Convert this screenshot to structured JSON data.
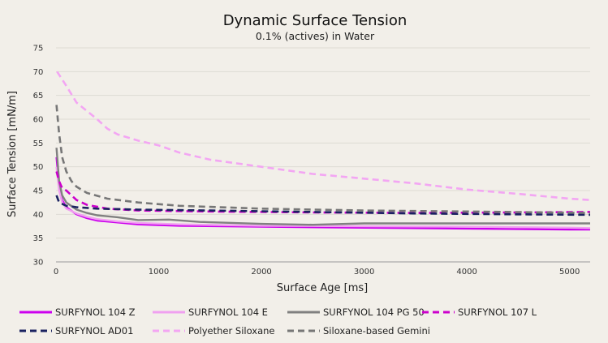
{
  "chart_data": {
    "type": "line",
    "title": "Dynamic Surface Tension",
    "subtitle": "0.1% (actives) in Water",
    "xlabel": "Surface Age [ms]",
    "ylabel": "Surface Tension [mN/m]",
    "xlim": [
      0,
      5200
    ],
    "ylim": [
      30,
      75
    ],
    "x_ticks": [
      0,
      1000,
      2000,
      3000,
      4000,
      5000
    ],
    "y_ticks": [
      30,
      35,
      40,
      45,
      50,
      55,
      60,
      65,
      70,
      75
    ],
    "legend_position": "bottom",
    "series": [
      {
        "name": "SURFYNOL 104 Z",
        "color": "#cc00ee",
        "dash": "solid",
        "points": [
          [
            5,
            52
          ],
          [
            30,
            46
          ],
          [
            60,
            43
          ],
          [
            100,
            41.5
          ],
          [
            200,
            40
          ],
          [
            300,
            39.2
          ],
          [
            400,
            38.7
          ],
          [
            600,
            38.3
          ],
          [
            800,
            37.9
          ],
          [
            1200,
            37.6
          ],
          [
            2000,
            37.4
          ],
          [
            3000,
            37.2
          ],
          [
            4000,
            37
          ],
          [
            5000,
            36.8
          ],
          [
            5200,
            36.8
          ]
        ]
      },
      {
        "name": "SURFYNOL 104 E",
        "color": "#f0a0f0",
        "dash": "solid",
        "points": [
          [
            5,
            50
          ],
          [
            30,
            45
          ],
          [
            60,
            42.5
          ],
          [
            100,
            41.2
          ],
          [
            200,
            40.2
          ],
          [
            300,
            39.5
          ],
          [
            400,
            39
          ],
          [
            600,
            38.5
          ],
          [
            800,
            38.2
          ],
          [
            1200,
            37.9
          ],
          [
            2000,
            37.6
          ],
          [
            3000,
            37.5
          ],
          [
            4000,
            37.4
          ],
          [
            5000,
            37.2
          ],
          [
            5200,
            37.1
          ]
        ]
      },
      {
        "name": "SURFYNOL 104 PG 50",
        "color": "#808080",
        "dash": "solid",
        "points": [
          [
            5,
            54
          ],
          [
            30,
            47
          ],
          [
            60,
            44
          ],
          [
            100,
            42.5
          ],
          [
            200,
            41
          ],
          [
            300,
            40.3
          ],
          [
            400,
            39.8
          ],
          [
            600,
            39.4
          ],
          [
            800,
            38.8
          ],
          [
            1100,
            38.9
          ],
          [
            1400,
            38.4
          ],
          [
            2000,
            38
          ],
          [
            2500,
            37.8
          ],
          [
            3000,
            38.1
          ],
          [
            4000,
            38.1
          ],
          [
            5200,
            38.1
          ]
        ]
      },
      {
        "name": "SURFYNOL 107 L",
        "color": "#cc00cc",
        "dash": "dash",
        "points": [
          [
            5,
            49
          ],
          [
            30,
            47
          ],
          [
            60,
            45.5
          ],
          [
            100,
            45
          ],
          [
            150,
            44
          ],
          [
            200,
            43
          ],
          [
            300,
            42
          ],
          [
            500,
            41.2
          ],
          [
            800,
            40.8
          ],
          [
            1500,
            40.6
          ],
          [
            2500,
            40.4
          ],
          [
            3500,
            40.3
          ],
          [
            4500,
            40.4
          ],
          [
            5200,
            40.5
          ]
        ]
      },
      {
        "name": "SURFYNOL AD01",
        "color": "#1a2260",
        "dash": "dash",
        "points": [
          [
            5,
            44
          ],
          [
            30,
            42.5
          ],
          [
            100,
            41.8
          ],
          [
            200,
            41.5
          ],
          [
            400,
            41.2
          ],
          [
            800,
            41
          ],
          [
            1500,
            40.8
          ],
          [
            2500,
            40.5
          ],
          [
            3500,
            40.2
          ],
          [
            4500,
            40
          ],
          [
            5200,
            39.9
          ]
        ]
      },
      {
        "name": "Polyether Siloxane",
        "color": "#f3a6f3",
        "dash": "dash",
        "points": [
          [
            10,
            70
          ],
          [
            100,
            67
          ],
          [
            200,
            63.5
          ],
          [
            400,
            60
          ],
          [
            500,
            58
          ],
          [
            600,
            56.8
          ],
          [
            800,
            55.5
          ],
          [
            1000,
            54.5
          ],
          [
            1200,
            53
          ],
          [
            1500,
            51.5
          ],
          [
            2000,
            50
          ],
          [
            2500,
            48.5
          ],
          [
            3000,
            47.5
          ],
          [
            3500,
            46.5
          ],
          [
            4000,
            45.2
          ],
          [
            4500,
            44.3
          ],
          [
            5000,
            43.3
          ],
          [
            5200,
            43
          ]
        ]
      },
      {
        "name": "Siloxane-based Gemini",
        "color": "#777777",
        "dash": "dash",
        "points": [
          [
            5,
            63
          ],
          [
            30,
            57
          ],
          [
            60,
            52
          ],
          [
            100,
            49
          ],
          [
            150,
            47
          ],
          [
            200,
            45.8
          ],
          [
            300,
            44.5
          ],
          [
            500,
            43.3
          ],
          [
            800,
            42.5
          ],
          [
            1200,
            41.8
          ],
          [
            2000,
            41.2
          ],
          [
            3000,
            40.8
          ],
          [
            4000,
            40.6
          ],
          [
            5200,
            40.3
          ]
        ]
      }
    ]
  }
}
